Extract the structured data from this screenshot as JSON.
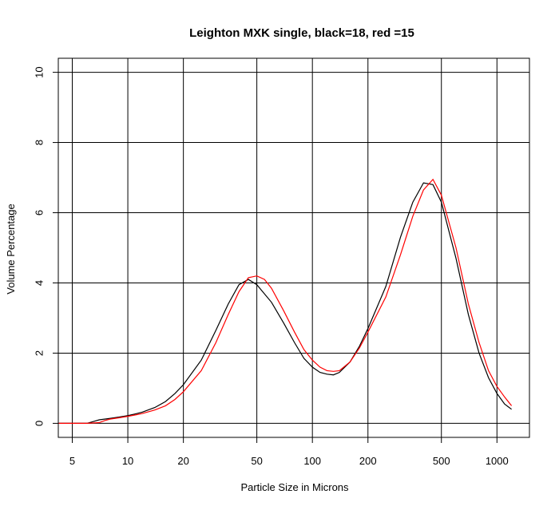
{
  "chart_data": {
    "type": "line",
    "title": "Leighton MXK single, black=18, red =15",
    "xlabel": "Particle Size in Microns",
    "ylabel": "Volume Percentage",
    "x_scale": "log",
    "xlim": [
      4.2,
      1500
    ],
    "ylim": [
      -0.4,
      10.4
    ],
    "x_ticks": [
      5,
      10,
      20,
      50,
      100,
      200,
      500,
      1000
    ],
    "x_tick_labels": [
      "5",
      "10",
      "20",
      "50",
      "100",
      "200",
      "500",
      "1000"
    ],
    "y_ticks": [
      0,
      2,
      4,
      6,
      8,
      10
    ],
    "y_tick_labels": [
      "0",
      "2",
      "4",
      "6",
      "8",
      "10"
    ],
    "grid": true,
    "series": [
      {
        "color": "#000000",
        "points": [
          [
            4.2,
            0
          ],
          [
            5,
            0
          ],
          [
            6,
            0
          ],
          [
            6.5,
            0.05
          ],
          [
            7,
            0.1
          ],
          [
            8,
            0.14
          ],
          [
            9,
            0.18
          ],
          [
            10,
            0.22
          ],
          [
            11,
            0.27
          ],
          [
            12,
            0.32
          ],
          [
            14,
            0.45
          ],
          [
            16,
            0.62
          ],
          [
            18,
            0.85
          ],
          [
            20,
            1.1
          ],
          [
            25,
            1.8
          ],
          [
            30,
            2.65
          ],
          [
            35,
            3.4
          ],
          [
            40,
            3.95
          ],
          [
            45,
            4.1
          ],
          [
            50,
            3.95
          ],
          [
            60,
            3.45
          ],
          [
            70,
            2.85
          ],
          [
            80,
            2.3
          ],
          [
            90,
            1.85
          ],
          [
            100,
            1.6
          ],
          [
            110,
            1.45
          ],
          [
            120,
            1.4
          ],
          [
            130,
            1.38
          ],
          [
            140,
            1.45
          ],
          [
            160,
            1.75
          ],
          [
            180,
            2.2
          ],
          [
            200,
            2.7
          ],
          [
            250,
            3.9
          ],
          [
            300,
            5.3
          ],
          [
            350,
            6.3
          ],
          [
            400,
            6.85
          ],
          [
            450,
            6.8
          ],
          [
            500,
            6.3
          ],
          [
            600,
            4.7
          ],
          [
            700,
            3.1
          ],
          [
            800,
            2.0
          ],
          [
            900,
            1.3
          ],
          [
            1000,
            0.85
          ],
          [
            1100,
            0.55
          ],
          [
            1200,
            0.4
          ]
        ]
      },
      {
        "color": "#ff0000",
        "points": [
          [
            4.2,
            0
          ],
          [
            5,
            0
          ],
          [
            6,
            0
          ],
          [
            7,
            0.02
          ],
          [
            7.5,
            0.08
          ],
          [
            8,
            0.12
          ],
          [
            9,
            0.16
          ],
          [
            10,
            0.2
          ],
          [
            11,
            0.24
          ],
          [
            12,
            0.28
          ],
          [
            14,
            0.38
          ],
          [
            16,
            0.5
          ],
          [
            18,
            0.68
          ],
          [
            20,
            0.9
          ],
          [
            25,
            1.5
          ],
          [
            30,
            2.3
          ],
          [
            35,
            3.1
          ],
          [
            40,
            3.75
          ],
          [
            45,
            4.15
          ],
          [
            50,
            4.2
          ],
          [
            55,
            4.1
          ],
          [
            60,
            3.85
          ],
          [
            70,
            3.2
          ],
          [
            80,
            2.6
          ],
          [
            90,
            2.1
          ],
          [
            100,
            1.8
          ],
          [
            110,
            1.6
          ],
          [
            120,
            1.5
          ],
          [
            130,
            1.48
          ],
          [
            140,
            1.5
          ],
          [
            160,
            1.75
          ],
          [
            180,
            2.15
          ],
          [
            200,
            2.6
          ],
          [
            250,
            3.6
          ],
          [
            300,
            4.8
          ],
          [
            350,
            5.9
          ],
          [
            400,
            6.65
          ],
          [
            450,
            6.95
          ],
          [
            500,
            6.5
          ],
          [
            600,
            5.0
          ],
          [
            700,
            3.4
          ],
          [
            800,
            2.3
          ],
          [
            900,
            1.5
          ],
          [
            1000,
            1.05
          ],
          [
            1100,
            0.75
          ],
          [
            1200,
            0.5
          ]
        ]
      }
    ]
  }
}
